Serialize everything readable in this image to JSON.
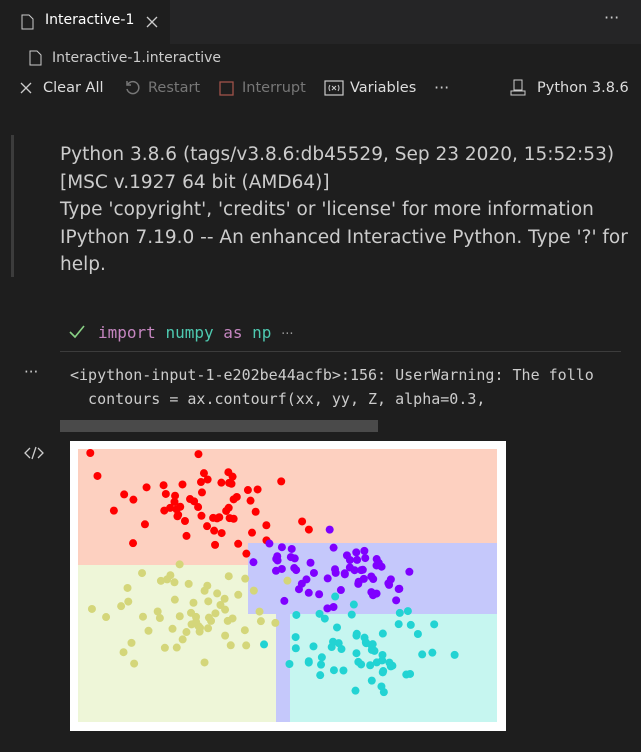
{
  "tab": {
    "title": "Interactive-1"
  },
  "breadcrumb": "Interactive-1.interactive",
  "toolbar": {
    "clear": "Clear All",
    "restart": "Restart",
    "interrupt": "Interrupt",
    "variables": "Variables",
    "more": "···",
    "kernel": "Python 3.8.6"
  },
  "header_more": "···",
  "banner": [
    "Python 3.8.6 (tags/v3.8.6:db45529, Sep 23 2020, 15:52:53)",
    "[MSC v.1927 64 bit (AMD64)]",
    "Type 'copyright', 'credits' or 'license' for more information",
    "IPython 7.19.0 -- An enhanced Interactive Python. Type '?' for",
    "help."
  ],
  "cell": {
    "code": [
      "import",
      "numpy",
      "as",
      "np"
    ],
    "collapsed": "···",
    "output_more": "···",
    "output": [
      "<ipython-input-1-e202be44acfb>:156: UserWarning: The follo",
      "  contours = ax.contourf(xx, yy, Z, alpha=0.3,"
    ]
  }
}
